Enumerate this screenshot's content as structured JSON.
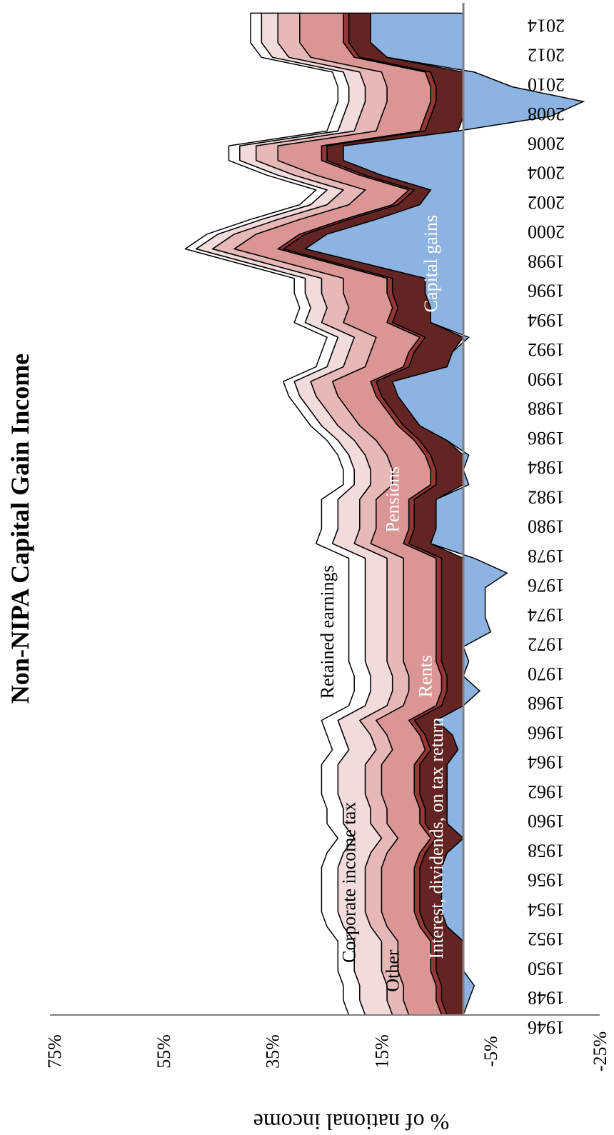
{
  "chart_data": {
    "type": "area",
    "title": "Non-NIPA Capital Gain Income",
    "ylabel": "% of national income",
    "xlabel": "",
    "ylim": [
      -25,
      75
    ],
    "yticks": [
      "75%",
      "55%",
      "35%",
      "15%",
      "-5%",
      "-25%"
    ],
    "xticks": [
      "1946",
      "1948",
      "1950",
      "1952",
      "1954",
      "1956",
      "1958",
      "1960",
      "1962",
      "1964",
      "1966",
      "1968",
      "1970",
      "1972",
      "1974",
      "1976",
      "1978",
      "1980",
      "1982",
      "1984",
      "1986",
      "1988",
      "1990",
      "1992",
      "1994",
      "1996",
      "1998",
      "2000",
      "2002",
      "2004",
      "2006",
      "2008",
      "2010",
      "2012",
      "2014"
    ],
    "x": [
      1946,
      1947,
      1948,
      1949,
      1950,
      1951,
      1952,
      1953,
      1954,
      1955,
      1956,
      1957,
      1958,
      1959,
      1960,
      1961,
      1962,
      1963,
      1964,
      1965,
      1966,
      1967,
      1968,
      1969,
      1970,
      1971,
      1972,
      1973,
      1974,
      1975,
      1976,
      1977,
      1978,
      1979,
      1980,
      1981,
      1982,
      1983,
      1984,
      1985,
      1986,
      1987,
      1988,
      1989,
      1990,
      1991,
      1992,
      1993,
      1994,
      1995,
      1996,
      1997,
      1998,
      1999,
      2000,
      2001,
      2002,
      2003,
      2004,
      2005,
      2006,
      2007,
      2008,
      2009,
      2010,
      2011,
      2012,
      2013,
      2014
    ],
    "series": [
      {
        "name": "Capital gains",
        "color": "#8db3e2",
        "values": [
          0,
          -1,
          -2,
          0,
          0,
          0,
          3,
          4,
          4,
          4,
          4,
          3,
          0,
          3,
          3,
          3,
          3,
          3,
          1,
          2,
          5,
          0,
          -3,
          0,
          -1,
          0,
          -5,
          -4,
          -4,
          -4,
          -8,
          -2,
          6,
          5,
          5,
          5,
          -1,
          0,
          -1,
          3,
          8,
          10,
          12,
          13,
          3,
          2,
          -1,
          6,
          6,
          7,
          7,
          18,
          29,
          25,
          16,
          8,
          6,
          15,
          22,
          22,
          1,
          -16,
          -22,
          -9,
          -2,
          14,
          17,
          17,
          17
        ]
      },
      {
        "name": "Interest, dividends, on tax return",
        "color": "#632523",
        "values": [
          3,
          4,
          4,
          5,
          5,
          5,
          4,
          4,
          4,
          4,
          4,
          4,
          5,
          4,
          4,
          5,
          5,
          5,
          5,
          5,
          4,
          4,
          3,
          3,
          4,
          4,
          4,
          4,
          4,
          4,
          4,
          4,
          4,
          4,
          4,
          4,
          5,
          5,
          6,
          5,
          3,
          3,
          3,
          3,
          7,
          7,
          7,
          7,
          6,
          6,
          6,
          5,
          4,
          4,
          5,
          4,
          3,
          3,
          3,
          3,
          6,
          6,
          5,
          5,
          6,
          5,
          4,
          4,
          4
        ]
      },
      {
        "name": "Rents",
        "color": "#953735",
        "values": [
          1,
          1,
          1,
          1,
          1,
          1,
          1,
          1,
          1,
          1,
          1,
          1,
          1,
          1,
          1,
          1,
          1,
          1,
          1,
          1,
          1,
          1,
          1,
          1,
          1,
          1,
          1,
          1,
          1,
          1,
          1,
          1,
          1,
          1,
          1,
          1,
          1,
          1,
          1,
          1,
          1,
          1,
          1,
          1,
          1,
          1,
          1,
          1,
          1,
          1,
          1,
          1,
          1,
          1,
          1,
          1,
          1,
          1,
          1,
          1,
          1,
          1,
          1,
          1,
          1,
          1,
          1,
          1,
          1
        ]
      },
      {
        "name": "Pensions",
        "color": "#da9694",
        "values": [
          6,
          6,
          6,
          6,
          6,
          6,
          6,
          6,
          6,
          6,
          6,
          6,
          6,
          6,
          6,
          6,
          6,
          6,
          6,
          6,
          6,
          6,
          6,
          6,
          6,
          6,
          6,
          6,
          6,
          6,
          6,
          6,
          6,
          6,
          6,
          6,
          7,
          7,
          7,
          7,
          7,
          7,
          7,
          7,
          7,
          7,
          8,
          8,
          8,
          8,
          8,
          8,
          8,
          8,
          8,
          8,
          8,
          8,
          8,
          8,
          8,
          8,
          8,
          8,
          8,
          8,
          8,
          8,
          8
        ]
      },
      {
        "name": "Other",
        "color": "#e6b9b8",
        "values": [
          3,
          3,
          3,
          3,
          3,
          3,
          3,
          3,
          3,
          3,
          3,
          3,
          3,
          3,
          3,
          3,
          3,
          3,
          3,
          3,
          3,
          3,
          3,
          3,
          3,
          3,
          3,
          3,
          3,
          3,
          3,
          3,
          3,
          3,
          3,
          3,
          4,
          4,
          4,
          4,
          4,
          4,
          4,
          4,
          4,
          4,
          4,
          4,
          4,
          4,
          4,
          4,
          4,
          4,
          4,
          4,
          4,
          4,
          4,
          4,
          4,
          4,
          4,
          4,
          4,
          4,
          4,
          4,
          4
        ]
      },
      {
        "name": "Corporate income tax",
        "color": "#f2dcdb",
        "values": [
          5,
          5,
          5,
          5,
          5,
          5,
          5,
          5,
          5,
          5,
          5,
          5,
          5,
          5,
          5,
          5,
          5,
          5,
          5,
          5,
          4,
          4,
          4,
          4,
          4,
          4,
          4,
          4,
          4,
          4,
          4,
          4,
          4,
          4,
          4,
          4,
          3,
          3,
          3,
          3,
          3,
          3,
          3,
          3,
          3,
          3,
          3,
          3,
          3,
          3,
          3,
          3,
          3,
          3,
          3,
          3,
          3,
          3,
          3,
          3,
          3,
          3,
          3,
          3,
          3,
          3,
          3,
          3,
          3
        ]
      },
      {
        "name": "Retained earnings",
        "color": "#ffffff",
        "values": [
          3,
          3,
          3,
          3,
          3,
          3,
          3,
          3,
          3,
          3,
          3,
          3,
          3,
          3,
          3,
          3,
          3,
          3,
          3,
          3,
          3,
          3,
          3,
          3,
          3,
          3,
          3,
          3,
          3,
          3,
          3,
          3,
          3,
          3,
          3,
          3,
          2,
          2,
          2,
          2,
          2,
          2,
          2,
          2,
          2,
          2,
          2,
          2,
          2,
          2,
          2,
          2,
          2,
          2,
          2,
          2,
          2,
          2,
          2,
          2,
          2,
          2,
          2,
          2,
          2,
          2,
          2,
          2,
          2
        ]
      }
    ],
    "annotations": [
      {
        "text": "Other",
        "x": 1949,
        "y": 13,
        "color": "#000000"
      },
      {
        "text": "Interest, dividends, on tax return",
        "x": 1958,
        "y": 5,
        "color": "#ffffff"
      },
      {
        "text": "Corporate income tax",
        "x": 1955,
        "y": 21,
        "color": "#000000"
      },
      {
        "text": "Retained earnings",
        "x": 1972,
        "y": 25,
        "color": "#000000"
      },
      {
        "text": "Rents",
        "x": 1969,
        "y": 7,
        "color": "#ffffff"
      },
      {
        "text": "Pensions",
        "x": 1981,
        "y": 13,
        "color": "#ffffff"
      },
      {
        "text": "Capital gains",
        "x": 1997,
        "y": 6,
        "color": "#ffffff"
      }
    ],
    "grid": false,
    "legend": "none"
  }
}
